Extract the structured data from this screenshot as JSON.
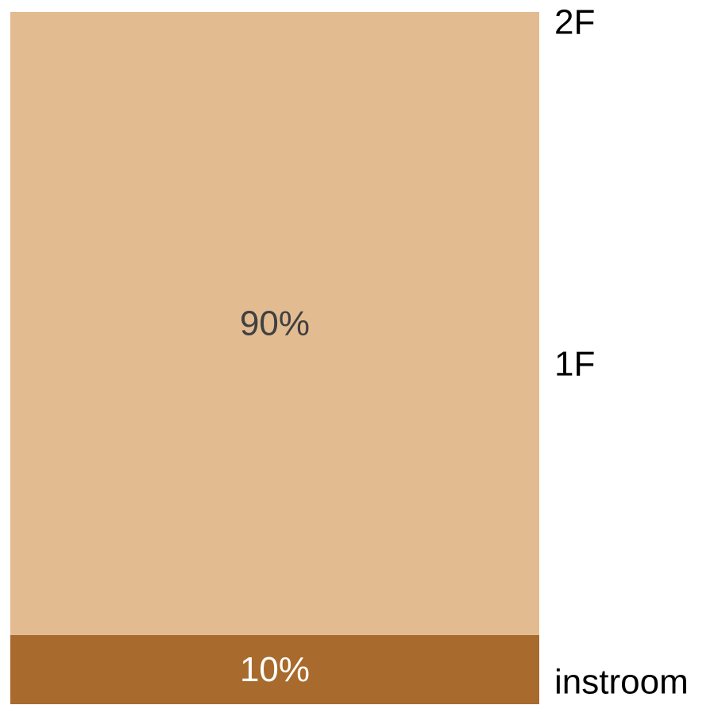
{
  "chart_data": {
    "type": "bar",
    "stacked": true,
    "segments": [
      {
        "value": 10,
        "label": "10%",
        "color": "#a86b2d",
        "label_color": "#ffffff"
      },
      {
        "value": 90,
        "label": "90%",
        "color": "#e3bb91",
        "label_color": "#404040"
      }
    ],
    "side_labels": [
      "instroom",
      "1F",
      "2F"
    ],
    "total": 100,
    "grid": false,
    "legend": "none"
  }
}
